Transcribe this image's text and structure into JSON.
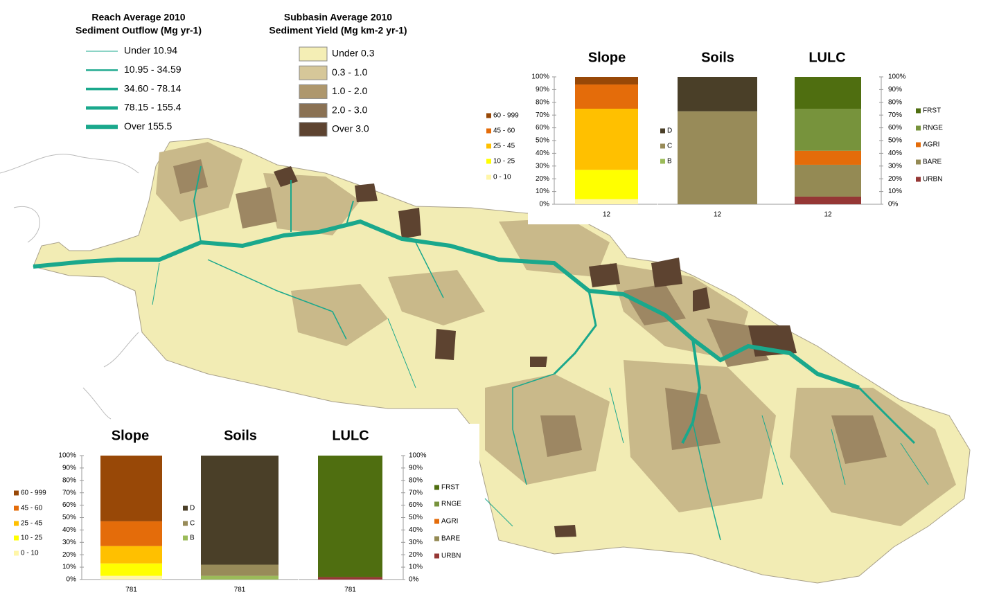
{
  "legends": {
    "reach": {
      "title": [
        "Reach Average 2010",
        "Sediment Outflow (Mg yr-1)"
      ],
      "color": "#1aa88c",
      "items": [
        "Under 10.94",
        "10.95 - 34.59",
        "34.60 - 78.14",
        "78.15 - 155.4",
        "Over 155.5"
      ]
    },
    "subbasin": {
      "title": [
        "Subbasin Average 2010",
        "Sediment Yield (Mg km-2 yr-1)"
      ],
      "items": [
        {
          "label": "Under 0.3",
          "color": "#f4eeb5"
        },
        {
          "label": "0.3 - 1.0",
          "color": "#d6c799"
        },
        {
          "label": "1.0 - 2.0",
          "color": "#ae976d"
        },
        {
          "label": "2.0 - 3.0",
          "color": "#8a7153"
        },
        {
          "label": "Over 3.0",
          "color": "#5d4330"
        }
      ]
    }
  },
  "chart_data": [
    {
      "type": "stacked_bar",
      "title": "Slope",
      "categories": [
        "12"
      ],
      "ylim": [
        0,
        100
      ],
      "yticks": [
        {
          "value": 0,
          "label": "0%"
        },
        {
          "value": 10,
          "label": "10%"
        },
        {
          "value": 20,
          "label": "20%"
        },
        {
          "value": 30,
          "label": "30%"
        },
        {
          "value": 40,
          "label": "40%"
        },
        {
          "value": 50,
          "label": "50%"
        },
        {
          "value": 60,
          "label": "60%"
        },
        {
          "value": 70,
          "label": "70%"
        },
        {
          "value": 80,
          "label": "80%"
        },
        {
          "value": 90,
          "label": "90%"
        },
        {
          "value": 100,
          "label": "100%"
        }
      ],
      "series": [
        {
          "name": "0 - 10",
          "color": "#fff6a8",
          "values": [
            4
          ]
        },
        {
          "name": "10 - 25",
          "color": "#ffff00",
          "values": [
            23
          ]
        },
        {
          "name": "25 - 45",
          "color": "#ffc000",
          "values": [
            48
          ]
        },
        {
          "name": "45 - 60",
          "color": "#e46c0a",
          "values": [
            19
          ]
        },
        {
          "name": "60 - 999",
          "color": "#984807",
          "values": [
            6
          ]
        }
      ]
    },
    {
      "type": "stacked_bar",
      "title": "Soils",
      "categories": [
        "12"
      ],
      "ylim": [
        0,
        100
      ],
      "series": [
        {
          "name": "B",
          "color": "#9bbb59",
          "values": [
            0
          ]
        },
        {
          "name": "C",
          "color": "#988b59",
          "values": [
            73
          ]
        },
        {
          "name": "D",
          "color": "#4a3f28",
          "values": [
            27
          ]
        }
      ]
    },
    {
      "type": "stacked_bar",
      "title": "LULC",
      "categories": [
        "12"
      ],
      "ylim": [
        0,
        100
      ],
      "yticks": [
        {
          "value": 0,
          "label": "0%"
        },
        {
          "value": 10,
          "label": "10%"
        },
        {
          "value": 20,
          "label": "20%"
        },
        {
          "value": 30,
          "label": "30%"
        },
        {
          "value": 40,
          "label": "40%"
        },
        {
          "value": 50,
          "label": "50%"
        },
        {
          "value": 60,
          "label": "60%"
        },
        {
          "value": 70,
          "label": "70%"
        },
        {
          "value": 80,
          "label": "80%"
        },
        {
          "value": 90,
          "label": "90%"
        },
        {
          "value": 100,
          "label": "100%"
        }
      ],
      "series": [
        {
          "name": "URBN",
          "color": "#953735",
          "values": [
            6
          ]
        },
        {
          "name": "BARE",
          "color": "#948a54",
          "values": [
            25
          ]
        },
        {
          "name": "AGRI",
          "color": "#e46c0a",
          "values": [
            11
          ]
        },
        {
          "name": "RNGE",
          "color": "#77933c",
          "values": [
            33
          ]
        },
        {
          "name": "FRST",
          "color": "#4f6e10",
          "values": [
            25
          ]
        }
      ]
    },
    {
      "type": "stacked_bar",
      "title": "Slope",
      "categories": [
        "781"
      ],
      "ylim": [
        0,
        100
      ],
      "yticks": [
        {
          "value": 0,
          "label": "0%"
        },
        {
          "value": 10,
          "label": "10%"
        },
        {
          "value": 20,
          "label": "20%"
        },
        {
          "value": 30,
          "label": "30%"
        },
        {
          "value": 40,
          "label": "40%"
        },
        {
          "value": 50,
          "label": "50%"
        },
        {
          "value": 60,
          "label": "60%"
        },
        {
          "value": 70,
          "label": "70%"
        },
        {
          "value": 80,
          "label": "80%"
        },
        {
          "value": 90,
          "label": "90%"
        },
        {
          "value": 100,
          "label": "100%"
        }
      ],
      "series": [
        {
          "name": "0 - 10",
          "color": "#fff6a8",
          "values": [
            3
          ]
        },
        {
          "name": "10 - 25",
          "color": "#ffff00",
          "values": [
            10
          ]
        },
        {
          "name": "25 - 45",
          "color": "#ffc000",
          "values": [
            14
          ]
        },
        {
          "name": "45 - 60",
          "color": "#e46c0a",
          "values": [
            20
          ]
        },
        {
          "name": "60 - 999",
          "color": "#984807",
          "values": [
            53
          ]
        }
      ]
    },
    {
      "type": "stacked_bar",
      "title": "Soils",
      "categories": [
        "781"
      ],
      "ylim": [
        0,
        100
      ],
      "series": [
        {
          "name": "B",
          "color": "#9bbb59",
          "values": [
            3
          ]
        },
        {
          "name": "C",
          "color": "#988b59",
          "values": [
            9
          ]
        },
        {
          "name": "D",
          "color": "#4a3f28",
          "values": [
            88
          ]
        }
      ]
    },
    {
      "type": "stacked_bar",
      "title": "LULC",
      "categories": [
        "781"
      ],
      "ylim": [
        0,
        100
      ],
      "yticks": [
        {
          "value": 0,
          "label": "0%"
        },
        {
          "value": 10,
          "label": "10%"
        },
        {
          "value": 20,
          "label": "20%"
        },
        {
          "value": 30,
          "label": "30%"
        },
        {
          "value": 40,
          "label": "40%"
        },
        {
          "value": 50,
          "label": "50%"
        },
        {
          "value": 60,
          "label": "60%"
        },
        {
          "value": 70,
          "label": "70%"
        },
        {
          "value": 80,
          "label": "80%"
        },
        {
          "value": 90,
          "label": "90%"
        },
        {
          "value": 100,
          "label": "100%"
        }
      ],
      "series": [
        {
          "name": "URBN",
          "color": "#953735",
          "values": [
            2
          ]
        },
        {
          "name": "BARE",
          "color": "#948a54",
          "values": [
            0
          ]
        },
        {
          "name": "AGRI",
          "color": "#e46c0a",
          "values": [
            0
          ]
        },
        {
          "name": "RNGE",
          "color": "#77933c",
          "values": [
            0
          ]
        },
        {
          "name": "FRST",
          "color": "#4f6e10",
          "values": [
            98
          ]
        }
      ]
    }
  ]
}
